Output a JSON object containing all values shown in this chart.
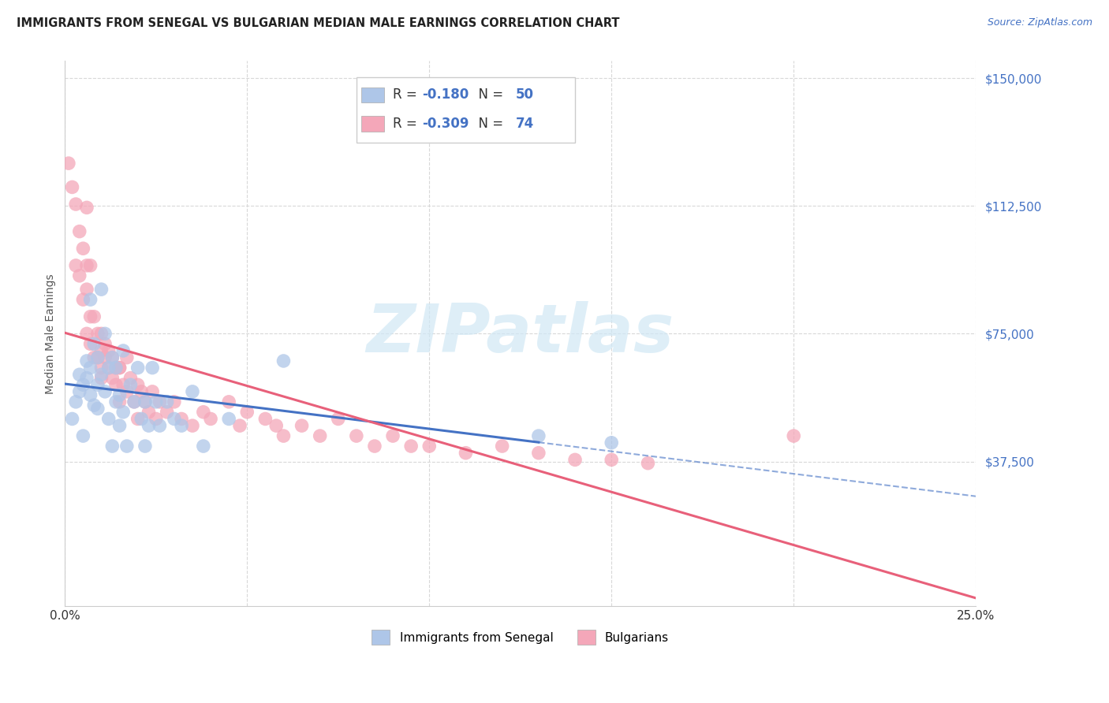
{
  "title": "IMMIGRANTS FROM SENEGAL VS BULGARIAN MEDIAN MALE EARNINGS CORRELATION CHART",
  "source": "Source: ZipAtlas.com",
  "ylabel": "Median Male Earnings",
  "xlim": [
    0.0,
    0.25
  ],
  "ylim": [
    -5000,
    155000
  ],
  "yticks": [
    37500,
    75000,
    112500,
    150000
  ],
  "ytick_labels": [
    "$37,500",
    "$75,000",
    "$112,500",
    "$150,000"
  ],
  "xticks": [
    0.0,
    0.05,
    0.1,
    0.15,
    0.2,
    0.25
  ],
  "xtick_labels": [
    "0.0%",
    "",
    "",
    "",
    "",
    "25.0%"
  ],
  "legend_labels": [
    "Immigrants from Senegal",
    "Bulgarians"
  ],
  "R_senegal": -0.18,
  "N_senegal": 50,
  "R_bulgarian": -0.309,
  "N_bulgarian": 74,
  "color_senegal": "#aec6e8",
  "color_bulgarian": "#f4a7b9",
  "line_color_senegal": "#4472c4",
  "line_color_bulgarian": "#e8607a",
  "text_color_blue": "#4472c4",
  "watermark_color": "#d0e8f5",
  "background_color": "#ffffff",
  "title_color": "#222222",
  "axis_label_color": "#555555",
  "grid_color": "#d8d8d8",
  "senegal_x": [
    0.002,
    0.003,
    0.004,
    0.004,
    0.005,
    0.005,
    0.006,
    0.006,
    0.007,
    0.007,
    0.007,
    0.008,
    0.008,
    0.009,
    0.009,
    0.009,
    0.01,
    0.01,
    0.011,
    0.011,
    0.012,
    0.012,
    0.013,
    0.013,
    0.014,
    0.014,
    0.015,
    0.015,
    0.016,
    0.016,
    0.017,
    0.018,
    0.019,
    0.02,
    0.021,
    0.022,
    0.022,
    0.023,
    0.024,
    0.025,
    0.026,
    0.028,
    0.03,
    0.032,
    0.035,
    0.038,
    0.045,
    0.06,
    0.13,
    0.15
  ],
  "senegal_y": [
    50000,
    55000,
    63000,
    58000,
    60000,
    45000,
    67000,
    62000,
    85000,
    65000,
    57000,
    54000,
    72000,
    68000,
    60000,
    53000,
    88000,
    63000,
    75000,
    58000,
    50000,
    65000,
    68000,
    42000,
    55000,
    65000,
    57000,
    48000,
    52000,
    70000,
    42000,
    60000,
    55000,
    65000,
    50000,
    55000,
    42000,
    48000,
    65000,
    55000,
    48000,
    55000,
    50000,
    48000,
    58000,
    42000,
    50000,
    67000,
    45000,
    43000
  ],
  "bulgarian_x": [
    0.001,
    0.002,
    0.003,
    0.003,
    0.004,
    0.004,
    0.005,
    0.005,
    0.006,
    0.006,
    0.006,
    0.007,
    0.007,
    0.007,
    0.008,
    0.008,
    0.009,
    0.009,
    0.01,
    0.01,
    0.01,
    0.011,
    0.011,
    0.012,
    0.012,
    0.013,
    0.013,
    0.014,
    0.014,
    0.015,
    0.015,
    0.016,
    0.017,
    0.017,
    0.018,
    0.019,
    0.02,
    0.021,
    0.022,
    0.023,
    0.024,
    0.025,
    0.026,
    0.028,
    0.03,
    0.032,
    0.035,
    0.038,
    0.04,
    0.045,
    0.048,
    0.05,
    0.055,
    0.058,
    0.06,
    0.065,
    0.07,
    0.075,
    0.08,
    0.085,
    0.09,
    0.095,
    0.1,
    0.11,
    0.12,
    0.13,
    0.14,
    0.15,
    0.16,
    0.2,
    0.006,
    0.01,
    0.015,
    0.02
  ],
  "bulgarian_y": [
    125000,
    118000,
    113000,
    95000,
    105000,
    92000,
    100000,
    85000,
    112000,
    88000,
    95000,
    95000,
    80000,
    72000,
    80000,
    68000,
    75000,
    68000,
    75000,
    70000,
    65000,
    72000,
    68000,
    70000,
    65000,
    68000,
    62000,
    65000,
    60000,
    65000,
    55000,
    60000,
    68000,
    58000,
    62000,
    55000,
    60000,
    58000,
    55000,
    52000,
    58000,
    50000,
    55000,
    52000,
    55000,
    50000,
    48000,
    52000,
    50000,
    55000,
    48000,
    52000,
    50000,
    48000,
    45000,
    48000,
    45000,
    50000,
    45000,
    42000,
    45000,
    42000,
    42000,
    40000,
    42000,
    40000,
    38000,
    38000,
    37000,
    45000,
    75000,
    62000,
    65000,
    50000
  ]
}
